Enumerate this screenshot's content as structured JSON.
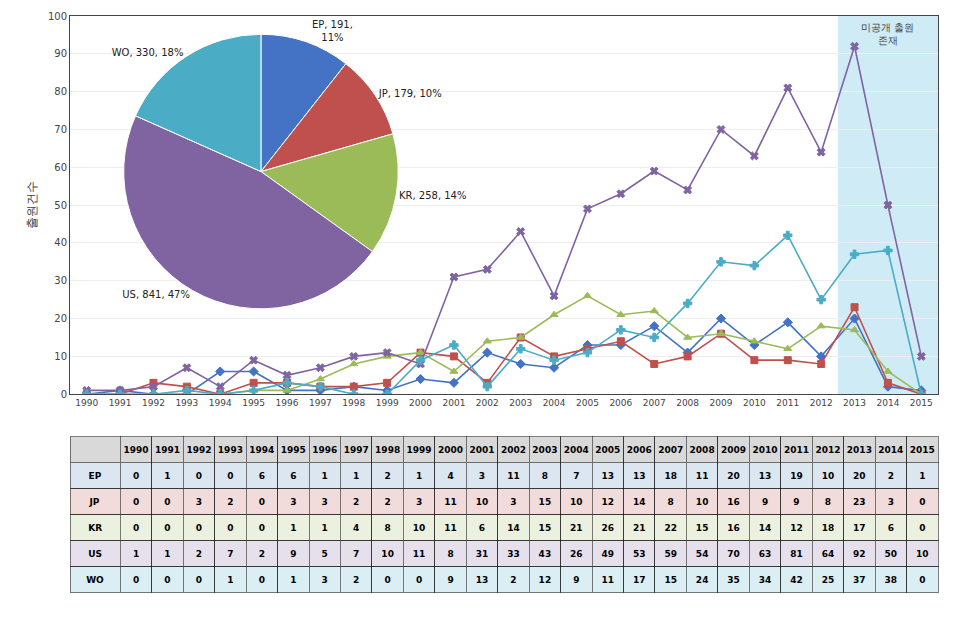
{
  "chart_data": [
    {
      "type": "line",
      "categories": [
        "1990",
        "1991",
        "1992",
        "1993",
        "1994",
        "1995",
        "1996",
        "1997",
        "1998",
        "1999",
        "2000",
        "2001",
        "2002",
        "2003",
        "2004",
        "2005",
        "2006",
        "2007",
        "2008",
        "2009",
        "2010",
        "2011",
        "2012",
        "2013",
        "2014",
        "2015"
      ],
      "series": [
        {
          "name": "EP",
          "color": "#4472C4",
          "marker": "diamond",
          "values": [
            0,
            1,
            0,
            0,
            6,
            6,
            1,
            1,
            2,
            1,
            4,
            3,
            11,
            8,
            7,
            13,
            13,
            18,
            11,
            20,
            13,
            19,
            10,
            20,
            2,
            1
          ]
        },
        {
          "name": "JP",
          "color": "#C0504D",
          "marker": "square",
          "values": [
            0,
            0,
            3,
            2,
            0,
            3,
            3,
            2,
            2,
            3,
            11,
            10,
            3,
            15,
            10,
            12,
            14,
            8,
            10,
            16,
            9,
            9,
            8,
            23,
            3,
            0
          ]
        },
        {
          "name": "KR",
          "color": "#9BBB59",
          "marker": "triangle-up",
          "values": [
            0,
            0,
            0,
            0,
            0,
            1,
            1,
            4,
            8,
            10,
            11,
            6,
            14,
            15,
            21,
            26,
            21,
            22,
            15,
            16,
            14,
            12,
            18,
            17,
            6,
            0
          ]
        },
        {
          "name": "US",
          "color": "#8064A2",
          "marker": "x",
          "values": [
            1,
            1,
            2,
            7,
            2,
            9,
            5,
            7,
            10,
            11,
            8,
            31,
            33,
            43,
            26,
            49,
            53,
            59,
            54,
            70,
            63,
            81,
            64,
            92,
            50,
            10
          ]
        },
        {
          "name": "WO",
          "color": "#4BACC6",
          "marker": "cross",
          "values": [
            0,
            0,
            0,
            1,
            0,
            1,
            3,
            2,
            0,
            0,
            9,
            13,
            2,
            12,
            9,
            11,
            17,
            15,
            24,
            35,
            34,
            42,
            25,
            37,
            38,
            0
          ]
        }
      ],
      "ylabel": "출원건수",
      "ylim": [
        0,
        100
      ],
      "yticks": [
        0,
        10,
        20,
        30,
        40,
        50,
        60,
        70,
        80,
        90,
        100
      ],
      "grid": true,
      "shaded": {
        "from": "2013",
        "color": "#C5E8F5",
        "label": "미공개 출원\n존재"
      }
    },
    {
      "type": "pie",
      "values": [
        191,
        179,
        258,
        841,
        330
      ],
      "value_labels": [
        "EP, 191,\n11%",
        "JP, 179, 10%",
        "KR, 258, 14%",
        "US, 841, 47%",
        "WO, 330, 18%"
      ],
      "colors": [
        "#4472C4",
        "#C0504D",
        "#9BBB59",
        "#8064A2",
        "#4BACC6"
      ]
    },
    {
      "type": "table",
      "categories": [
        "1990",
        "1991",
        "1992",
        "1993",
        "1994",
        "1995",
        "1996",
        "1997",
        "1998",
        "1999",
        "2000",
        "2001",
        "2002",
        "2003",
        "2004",
        "2005",
        "2006",
        "2007",
        "2008",
        "2009",
        "2010",
        "2011",
        "2012",
        "2013",
        "2014",
        "2015"
      ],
      "header_color": "#D9D9D9",
      "rows": [
        {
          "name": "EP",
          "color": "#DCE6F1",
          "values": [
            0,
            1,
            0,
            0,
            6,
            6,
            1,
            1,
            2,
            1,
            4,
            3,
            11,
            8,
            7,
            13,
            13,
            18,
            11,
            20,
            13,
            19,
            10,
            20,
            2,
            1
          ]
        },
        {
          "name": "JP",
          "color": "#F2DCDB",
          "values": [
            0,
            0,
            3,
            2,
            0,
            3,
            3,
            2,
            2,
            3,
            11,
            10,
            3,
            15,
            10,
            12,
            14,
            8,
            10,
            16,
            9,
            9,
            8,
            23,
            3,
            0
          ]
        },
        {
          "name": "KR",
          "color": "#EBF1DE",
          "values": [
            0,
            0,
            0,
            0,
            0,
            1,
            1,
            4,
            8,
            10,
            11,
            6,
            14,
            15,
            21,
            26,
            21,
            22,
            15,
            16,
            14,
            12,
            18,
            17,
            6,
            0
          ]
        },
        {
          "name": "US",
          "color": "#E6E0EC",
          "values": [
            1,
            1,
            2,
            7,
            2,
            9,
            5,
            7,
            10,
            11,
            8,
            31,
            33,
            43,
            26,
            49,
            53,
            59,
            54,
            70,
            63,
            81,
            64,
            92,
            50,
            10
          ]
        },
        {
          "name": "WO",
          "color": "#DAEEF3",
          "values": [
            0,
            0,
            0,
            1,
            0,
            1,
            3,
            2,
            0,
            0,
            9,
            13,
            2,
            12,
            9,
            11,
            17,
            15,
            24,
            35,
            34,
            42,
            25,
            37,
            38,
            0
          ]
        }
      ]
    }
  ]
}
